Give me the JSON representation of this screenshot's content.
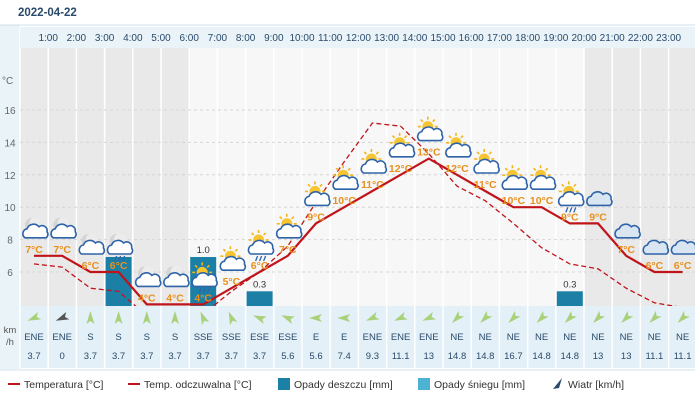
{
  "date": "2022-04-22",
  "y_unit": "°C",
  "wind_unit": "km\n/h",
  "chart_data": {
    "type": "line",
    "hours": [
      "1:00",
      "2:00",
      "3:00",
      "4:00",
      "5:00",
      "6:00",
      "7:00",
      "8:00",
      "9:00",
      "10:00",
      "11:00",
      "12:00",
      "13:00",
      "14:00",
      "15:00",
      "16:00",
      "17:00",
      "18:00",
      "19:00",
      "20:00",
      "21:00",
      "22:00",
      "23:00"
    ],
    "y_ticks": [
      6,
      8,
      10,
      12,
      14,
      16
    ],
    "ylim": [
      3.0,
      19.1
    ],
    "temperature_labels": [
      "7°C",
      "7°C",
      "6°C",
      "6°C",
      "4°C",
      "4°C",
      "4°C",
      "5°C",
      "6°C",
      "7°C",
      "9°C",
      "10°C",
      "11°C",
      "12°C",
      "13°C",
      "12°C",
      "11°C",
      "10°C",
      "10°C",
      "9°C",
      "9°C",
      "7°C",
      "6°C",
      "6°C"
    ],
    "temperature": [
      7.0,
      7.0,
      6.0,
      6.0,
      4.0,
      4.0,
      4.0,
      5.0,
      6.0,
      7.0,
      9.0,
      10.0,
      11.0,
      12.0,
      13.0,
      12.0,
      11.0,
      10.0,
      10.0,
      9.0,
      9.0,
      7.0,
      6.0,
      6.0
    ],
    "feels_like": [
      6.5,
      6.3,
      5.0,
      4.8,
      3.3,
      3.2,
      3.4,
      4.8,
      6.0,
      7.6,
      10.3,
      12.8,
      15.2,
      15.0,
      13.3,
      11.3,
      10.4,
      9.0,
      7.5,
      6.5,
      6.2,
      5.0,
      4.1,
      3.8
    ],
    "rain_mm": [
      0,
      0,
      0,
      1.0,
      0,
      0,
      1.0,
      0,
      0.3,
      0,
      0,
      0,
      0,
      0,
      0,
      0,
      0,
      0,
      0,
      0.3,
      0,
      0,
      0,
      0
    ],
    "rain_labels": [
      "",
      "",
      "",
      "1.0",
      "",
      "",
      "1.0",
      "",
      "0.3",
      "",
      "",
      "",
      "",
      "",
      "",
      "",
      "",
      "",
      "",
      "0.3",
      "",
      "",
      "",
      ""
    ],
    "wind_dir": [
      "ENE",
      "ENE",
      "S",
      "S",
      "S",
      "S",
      "SSE",
      "SSE",
      "ESE",
      "ESE",
      "E",
      "E",
      "ENE",
      "ENE",
      "ENE",
      "NE",
      "NE",
      "NE",
      "NE",
      "NE",
      "NE",
      "NE",
      "NE",
      "NE"
    ],
    "wind_bearing": [
      67,
      67,
      180,
      180,
      180,
      180,
      157,
      157,
      112,
      112,
      90,
      90,
      67,
      67,
      67,
      45,
      45,
      45,
      45,
      45,
      45,
      45,
      45,
      45
    ],
    "wind_speed": [
      "3.7",
      "0",
      "3.7",
      "3.7",
      "3.7",
      "3.7",
      "3.7",
      "3.7",
      "3.7",
      "5.6",
      "5.6",
      "7.4",
      "9.3",
      "11.1",
      "13",
      "14.8",
      "14.8",
      "16.7",
      "14.8",
      "14.8",
      "13",
      "13",
      "11.1",
      "11.1"
    ],
    "icons": [
      "moon-cloud",
      "moon-cloud",
      "moon-cloud",
      "moon-cloud-rain",
      "moon-cloud",
      "moon-cloud",
      "sun-cloud-rain",
      "sun-cloud",
      "sun-cloud-rain",
      "sun-cloud",
      "sun-cloud",
      "sun-cloud",
      "sun-cloud",
      "sun-cloud",
      "sun-cloud",
      "sun-cloud",
      "sun-cloud",
      "sun-cloud",
      "sun-cloud",
      "sun-cloud-rain",
      "cloud",
      "cloud",
      "cloud",
      "cloud"
    ],
    "legend": [
      {
        "key": "temp",
        "label": "Temperatura [°C]",
        "color": "#c0141b"
      },
      {
        "key": "feels",
        "label": "Temp. odczuwalna [°C]",
        "color": "#c0141b"
      },
      {
        "key": "rain",
        "label": "Opady deszczu [mm]",
        "color": "#1b7fa6"
      },
      {
        "key": "snow",
        "label": "Opady śniegu [mm]",
        "color": "#4db3d3"
      },
      {
        "key": "wind",
        "label": "Wiatr [km/h]",
        "color": "#2a4a6b"
      }
    ],
    "colors": {
      "line": "#c0141b",
      "rain": "#1b7fa6",
      "snow": "#4db3d3",
      "label": "#e8901e",
      "night": "#e9e9e9",
      "day": "#f7f7f7",
      "grid": "#d6d6d6",
      "windbg": "#e3f0f7",
      "arrow": "#a9d17a",
      "arrow_calm": "#555555"
    }
  }
}
